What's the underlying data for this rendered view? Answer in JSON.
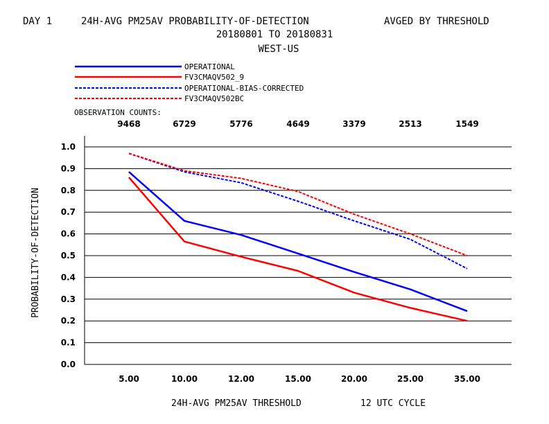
{
  "title": {
    "line1_left": "DAY 1",
    "line1_mid": "24H-AVG PM25AV PROBABILITY-OF-DETECTION",
    "line1_right": "AVGED BY THRESHOLD",
    "line2": "20180801 TO 20180831",
    "line3": "WEST-US"
  },
  "observation_label": "OBSERVATION COUNTS:",
  "chart_data": {
    "type": "line",
    "categories": [
      "5.00",
      "10.00",
      "12.00",
      "15.00",
      "20.00",
      "25.00",
      "35.00"
    ],
    "observation_counts": [
      "9468",
      "6729",
      "5776",
      "4649",
      "3379",
      "2513",
      "1549"
    ],
    "xlabel": "24H-AVG PM25AV THRESHOLD",
    "xlabel_suffix": "12 UTC CYCLE",
    "ylabel": "PROBABILITY-OF-DETECTION",
    "ylim": [
      0,
      1.0
    ],
    "yticks": [
      "0.0",
      "0.1",
      "0.2",
      "0.3",
      "0.4",
      "0.5",
      "0.6",
      "0.7",
      "0.8",
      "0.9",
      "1.0"
    ],
    "grid": true,
    "legend_position": "top-left",
    "series": [
      {
        "name": "OPERATIONAL",
        "color": "#0000ff",
        "dashed": false,
        "values": [
          0.885,
          0.66,
          0.595,
          0.51,
          0.425,
          0.345,
          0.245
        ]
      },
      {
        "name": "FV3CMAQV502_9",
        "color": "#ff0000",
        "dashed": false,
        "values": [
          0.86,
          0.565,
          0.495,
          0.43,
          0.33,
          0.26,
          0.2
        ]
      },
      {
        "name": "OPERATIONAL-BIAS-CORRECTED",
        "color": "#0000ff",
        "dashed": true,
        "values": [
          0.97,
          0.885,
          0.835,
          0.75,
          0.66,
          0.575,
          0.44
        ]
      },
      {
        "name": "FV3CMAQV502BC",
        "color": "#ff0000",
        "dashed": true,
        "values": [
          0.97,
          0.89,
          0.855,
          0.795,
          0.69,
          0.6,
          0.5
        ]
      }
    ]
  }
}
